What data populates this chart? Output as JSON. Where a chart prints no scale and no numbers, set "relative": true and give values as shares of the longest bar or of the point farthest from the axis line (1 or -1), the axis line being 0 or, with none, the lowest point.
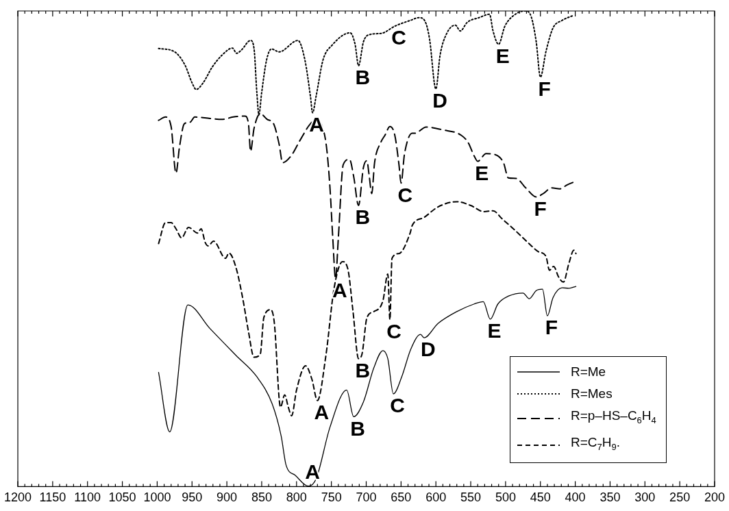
{
  "chart_data": {
    "type": "line",
    "relative": true,
    "marker": "none",
    "legend": "bottom right",
    "xlim": [
      1200,
      200
    ],
    "xticks": [
      1200,
      {
        "value": 1190,
        "label": null
      },
      {
        "value": 1180,
        "label": null
      },
      {
        "value": 1170,
        "label": null
      },
      {
        "value": 1160,
        "label": null
      },
      1150,
      {
        "value": 1140,
        "label": null
      },
      {
        "value": 1130,
        "label": null
      },
      {
        "value": 1120,
        "label": null
      },
      {
        "value": 1110,
        "label": null
      },
      1100,
      {
        "value": 1090,
        "label": null
      },
      {
        "value": 1080,
        "label": null
      },
      {
        "value": 1070,
        "label": null
      },
      {
        "value": 1060,
        "label": null
      },
      1050,
      {
        "value": 1040,
        "label": null
      },
      {
        "value": 1030,
        "label": null
      },
      {
        "value": 1020,
        "label": null
      },
      {
        "value": 1010,
        "label": null
      },
      1000,
      {
        "value": 990,
        "label": null
      },
      {
        "value": 980,
        "label": null
      },
      {
        "value": 970,
        "label": null
      },
      {
        "value": 960,
        "label": null
      },
      950,
      {
        "value": 940,
        "label": null
      },
      {
        "value": 930,
        "label": null
      },
      {
        "value": 920,
        "label": null
      },
      {
        "value": 910,
        "label": null
      },
      900,
      {
        "value": 890,
        "label": null
      },
      {
        "value": 880,
        "label": null
      },
      {
        "value": 870,
        "label": null
      },
      {
        "value": 860,
        "label": null
      },
      850,
      {
        "value": 840,
        "label": null
      },
      {
        "value": 830,
        "label": null
      },
      {
        "value": 820,
        "label": null
      },
      {
        "value": 810,
        "label": null
      },
      800,
      {
        "value": 790,
        "label": null
      },
      {
        "value": 780,
        "label": null
      },
      {
        "value": 770,
        "label": null
      },
      {
        "value": 760,
        "label": null
      },
      750,
      {
        "value": 740,
        "label": null
      },
      {
        "value": 730,
        "label": null
      },
      {
        "value": 720,
        "label": null
      },
      {
        "value": 710,
        "label": null
      },
      700,
      {
        "value": 690,
        "label": null
      },
      {
        "value": 680,
        "label": null
      },
      {
        "value": 670,
        "label": null
      },
      {
        "value": 660,
        "label": null
      },
      650,
      {
        "value": 640,
        "label": null
      },
      {
        "value": 630,
        "label": null
      },
      {
        "value": 620,
        "label": null
      },
      {
        "value": 610,
        "label": null
      },
      600,
      {
        "value": 590,
        "label": null
      },
      {
        "value": 580,
        "label": null
      },
      {
        "value": 570,
        "label": null
      },
      {
        "value": 560,
        "label": null
      },
      550,
      {
        "value": 540,
        "label": null
      },
      {
        "value": 530,
        "label": null
      },
      {
        "value": 520,
        "label": null
      },
      {
        "value": 510,
        "label": null
      },
      500,
      {
        "value": 490,
        "label": null
      },
      {
        "value": 480,
        "label": null
      },
      {
        "value": 470,
        "label": null
      },
      {
        "value": 460,
        "label": null
      },
      450,
      {
        "value": 440,
        "label": null
      },
      {
        "value": 430,
        "label": null
      },
      {
        "value": 420,
        "label": null
      },
      {
        "value": 410,
        "label": null
      },
      400,
      {
        "value": 390,
        "label": null
      },
      {
        "value": 380,
        "label": null
      },
      {
        "value": 370,
        "label": null
      },
      {
        "value": 360,
        "label": null
      },
      350,
      {
        "value": 340,
        "label": null
      },
      {
        "value": 330,
        "label": null
      },
      {
        "value": 320,
        "label": null
      },
      {
        "value": 310,
        "label": null
      },
      300,
      {
        "value": 290,
        "label": null
      },
      {
        "value": 280,
        "label": null
      },
      {
        "value": 270,
        "label": null
      },
      {
        "value": 260,
        "label": null
      },
      250,
      {
        "value": 240,
        "label": null
      },
      {
        "value": 230,
        "label": null
      },
      {
        "value": 220,
        "label": null
      },
      {
        "value": 210,
        "label": null
      },
      200
    ],
    "series": [
      {
        "name": "R=Me",
        "color": "#000000",
        "line_style": "solid",
        "x": [
          998,
          982,
          956,
          924,
          887,
          857,
          835,
          822,
          815,
          802,
          783,
          772,
          752,
          728,
          718,
          704,
          689,
          676,
          669,
          661,
          649,
          636,
          622,
          617,
          597,
          570,
          545,
          532,
          522,
          511,
          495,
          475,
          466,
          456,
          447,
          440,
          432,
          419,
          409,
          399
        ],
        "values": [
          0.24,
          0.115,
          0.382,
          0.332,
          0.276,
          0.231,
          0.174,
          0.106,
          0.045,
          0.024,
          0.001,
          0.016,
          0.125,
          0.203,
          0.147,
          0.178,
          0.25,
          0.286,
          0.269,
          0.195,
          0.231,
          0.289,
          0.32,
          0.313,
          0.343,
          0.368,
          0.384,
          0.389,
          0.352,
          0.384,
          0.401,
          0.407,
          0.395,
          0.412,
          0.415,
          0.359,
          0.397,
          0.418,
          0.417,
          0.421
        ]
      },
      {
        "name": "R=Mes",
        "color": "#000000",
        "line_style": "dotted",
        "x": [
          998,
          976,
          960,
          950,
          944,
          934,
          921,
          907,
          892,
          886,
          879,
          866,
          861,
          857,
          854,
          850,
          843,
          836,
          825,
          798,
          788,
          780,
          777,
          772,
          762,
          749,
          723,
          716,
          711,
          704,
          696,
          678,
          659,
          637,
          624,
          614,
          609,
          600,
          594,
          584,
          572,
          565,
          555,
          538,
          523,
          518,
          510,
          501,
          485,
          471,
          463,
          456,
          450,
          442,
          432,
          419,
          402
        ],
        "values": [
          0.921,
          0.915,
          0.886,
          0.849,
          0.835,
          0.849,
          0.882,
          0.907,
          0.922,
          0.911,
          0.918,
          0.938,
          0.921,
          0.829,
          0.782,
          0.829,
          0.897,
          0.92,
          0.914,
          0.938,
          0.897,
          0.82,
          0.786,
          0.82,
          0.897,
          0.928,
          0.954,
          0.93,
          0.885,
          0.935,
          0.95,
          0.953,
          0.968,
          0.98,
          0.986,
          0.973,
          0.94,
          0.836,
          0.907,
          0.954,
          0.97,
          0.958,
          0.976,
          0.986,
          0.993,
          0.958,
          0.93,
          0.968,
          0.994,
          1.0,
          0.987,
          0.935,
          0.861,
          0.915,
          0.964,
          0.98,
          0.991
        ]
      },
      {
        "name": "R=p–HS–C$_{6}$H$_{4}$",
        "color": "#000000",
        "line_style": "dashed",
        "x": [
          998,
          988,
          980,
          973,
          968,
          961,
          953,
          946,
          924,
          907,
          891,
          874,
          869,
          866,
          861,
          852,
          842,
          833,
          825,
          820,
          808,
          795,
          780,
          772,
          763,
          757,
          752,
          748,
          744,
          740,
          733,
          724,
          718,
          711,
          704,
          699,
          696,
          692,
          688,
          679,
          673,
          666,
          659,
          653,
          650,
          645,
          634,
          630,
          614,
          590,
          564,
          554,
          545,
          540,
          528,
          515,
          503,
          496,
          485,
          471,
          456,
          446,
          434,
          422,
          412,
          401
        ],
        "values": [
          0.77,
          0.777,
          0.757,
          0.659,
          0.714,
          0.763,
          0.766,
          0.777,
          0.774,
          0.772,
          0.777,
          0.779,
          0.763,
          0.705,
          0.753,
          0.784,
          0.772,
          0.763,
          0.72,
          0.681,
          0.695,
          0.728,
          0.763,
          0.77,
          0.757,
          0.714,
          0.628,
          0.523,
          0.437,
          0.523,
          0.677,
          0.688,
          0.652,
          0.591,
          0.671,
          0.685,
          0.657,
          0.616,
          0.681,
          0.724,
          0.739,
          0.757,
          0.739,
          0.677,
          0.638,
          0.7,
          0.743,
          0.743,
          0.756,
          0.75,
          0.739,
          0.724,
          0.695,
          0.684,
          0.7,
          0.698,
          0.681,
          0.649,
          0.648,
          0.628,
          0.609,
          0.616,
          0.628,
          0.626,
          0.634,
          0.641
        ]
      },
      {
        "name": "R=C$_{7}$H$_{9}$.",
        "color": "#000000",
        "line_style": "dashed",
        "x": [
          998,
          988,
          980,
          973,
          965,
          955,
          942,
          937,
          931,
          927,
          919,
          902,
          897,
          887,
          877,
          869,
          861,
          852,
          847,
          837,
          832,
          823,
          817,
          812,
          807,
          800,
          787,
          778,
          770,
          758,
          746,
          734,
          726,
          719,
          711,
          706,
          699,
          689,
          676,
          669,
          666,
          663,
          653,
          637,
          634,
          617,
          597,
          570,
          550,
          531,
          518,
          505,
          491,
          475,
          465,
          453,
          442,
          437,
          431,
          424,
          417,
          409,
          402,
          399
        ],
        "values": [
          0.511,
          0.555,
          0.555,
          0.542,
          0.523,
          0.545,
          0.533,
          0.542,
          0.513,
          0.506,
          0.516,
          0.48,
          0.491,
          0.461,
          0.394,
          0.326,
          0.272,
          0.279,
          0.355,
          0.372,
          0.346,
          0.167,
          0.193,
          0.168,
          0.149,
          0.203,
          0.254,
          0.226,
          0.181,
          0.274,
          0.418,
          0.473,
          0.455,
          0.369,
          0.269,
          0.279,
          0.355,
          0.368,
          0.391,
          0.447,
          0.351,
          0.48,
          0.49,
          0.533,
          0.549,
          0.566,
          0.588,
          0.599,
          0.591,
          0.578,
          0.58,
          0.563,
          0.545,
          0.523,
          0.509,
          0.494,
          0.484,
          0.455,
          0.463,
          0.441,
          0.43,
          0.47,
          0.497,
          0.49
        ]
      }
    ],
    "annotations": [
      {
        "text": "A",
        "x": 777,
        "y": 0.786
      },
      {
        "text": "B",
        "x": 711,
        "y": 0.885
      },
      {
        "text": "C",
        "x": 659,
        "y": 0.968
      },
      {
        "text": "D",
        "x": 600,
        "y": 0.836
      },
      {
        "text": "E",
        "x": 510,
        "y": 0.93
      },
      {
        "text": "F",
        "x": 450,
        "y": 0.861
      },
      {
        "text": "A",
        "x": 744,
        "y": 0.437
      },
      {
        "text": "B",
        "x": 711,
        "y": 0.591
      },
      {
        "text": "C",
        "x": 650,
        "y": 0.638
      },
      {
        "text": "E",
        "x": 540,
        "y": 0.684
      },
      {
        "text": "F",
        "x": 456,
        "y": 0.609
      },
      {
        "text": "A",
        "x": 770,
        "y": 0.181
      },
      {
        "text": "B",
        "x": 711,
        "y": 0.269
      },
      {
        "text": "C",
        "x": 666,
        "y": 0.351
      },
      {
        "text": "A",
        "x": 783,
        "y": 0.001
      },
      {
        "text": "B",
        "x": 718,
        "y": 0.147
      },
      {
        "text": "C",
        "x": 661,
        "y": 0.195
      },
      {
        "text": "D",
        "x": 617,
        "y": 0.313
      },
      {
        "text": "E",
        "x": 522,
        "y": 0.352
      },
      {
        "text": "F",
        "x": 440,
        "y": 0.359
      }
    ]
  }
}
